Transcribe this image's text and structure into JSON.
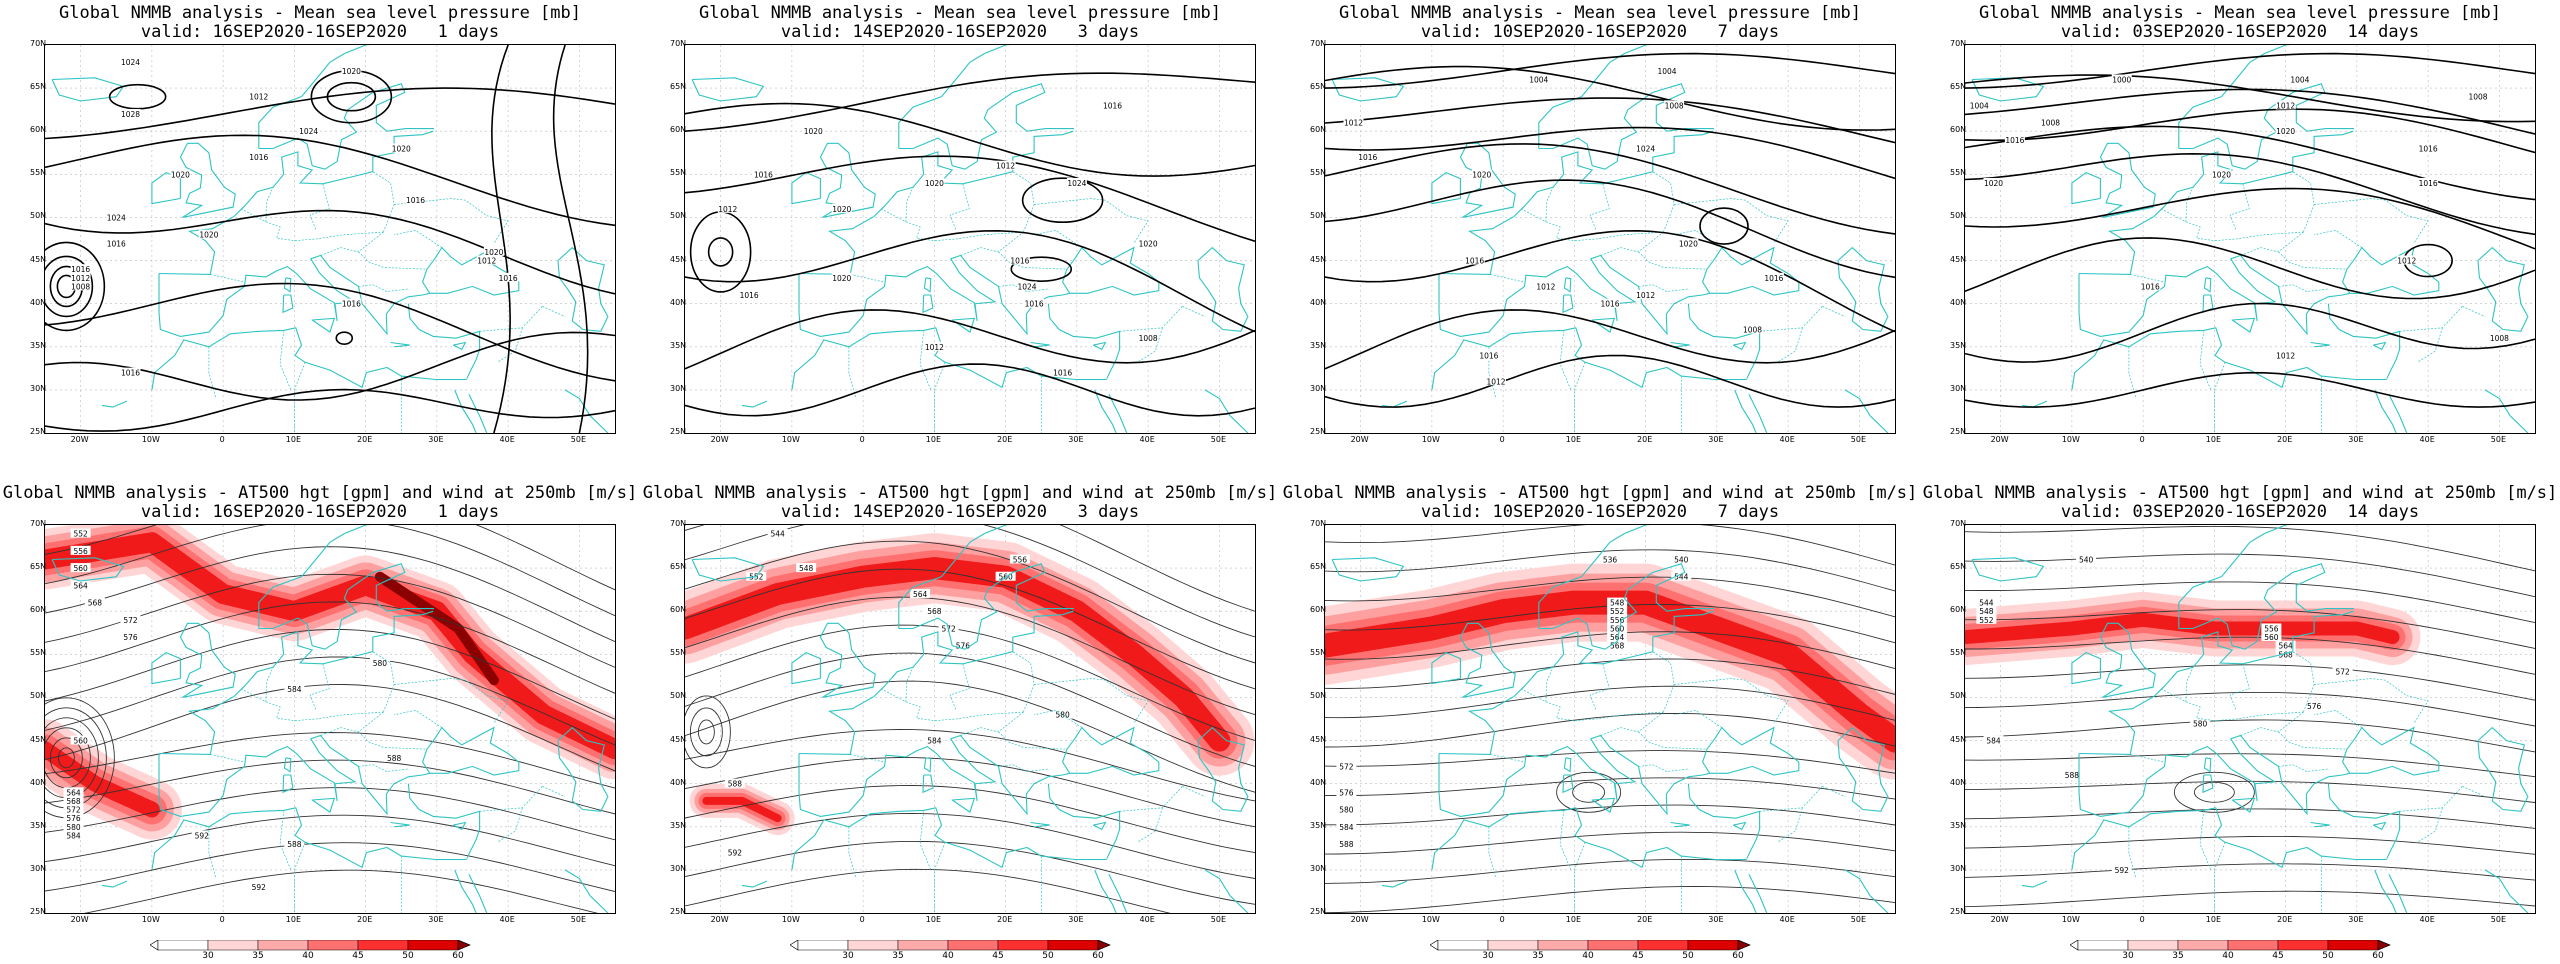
{
  "panels": [
    {
      "row": 0,
      "col": 0,
      "kind": "mslp",
      "title1": "Global NMMB analysis - Mean sea level pressure [mb]",
      "title2": "valid: 16SEP2020-16SEP2020   1 days",
      "labels": [
        "1024",
        "1028",
        "1012",
        "1020",
        "1024",
        "1016",
        "1020",
        "1016",
        "1020",
        "1024",
        "1020",
        "1016",
        "1016",
        "1012",
        "1008",
        "1016",
        "1016",
        "1012",
        "1020",
        "1016"
      ]
    },
    {
      "row": 0,
      "col": 1,
      "kind": "mslp",
      "title1": "Global NMMB analysis - Mean sea level pressure [mb]",
      "title2": "valid: 14SEP2020-16SEP2020   3 days",
      "labels": [
        "1012",
        "1020",
        "1016",
        "1016",
        "1012",
        "1020",
        "1020",
        "1024",
        "1016",
        "1024",
        "1020",
        "1020",
        "1016",
        "1016",
        "1012",
        "1016",
        "1008"
      ]
    },
    {
      "row": 0,
      "col": 2,
      "kind": "mslp",
      "title1": "Global NMMB analysis - Mean sea level pressure [mb]",
      "title2": "valid: 10SEP2020-16SEP2020   7 days",
      "labels": [
        "1004",
        "1004",
        "1008",
        "1012",
        "1016",
        "1020",
        "1024",
        "1016",
        "1012",
        "1020",
        "1016",
        "1016",
        "1012",
        "1008",
        "1016",
        "1012"
      ]
    },
    {
      "row": 0,
      "col": 3,
      "kind": "mslp",
      "title1": "Global NMMB analysis - Mean sea level pressure [mb]",
      "title2": "valid: 03SEP2020-16SEP2020  14 days",
      "labels": [
        "1000",
        "1004",
        "1008",
        "1004",
        "1008",
        "1012",
        "1016",
        "1020",
        "1016",
        "1020",
        "1020",
        "1016",
        "1012",
        "1016",
        "1012",
        "1008"
      ]
    },
    {
      "row": 1,
      "col": 0,
      "kind": "z500",
      "title1": "Global NMMB analysis - AT500 hgt [gpm] and wind at 250mb [m/s]",
      "title2": "valid: 16SEP2020-16SEP2020   1 days",
      "labels": [
        "552",
        "556",
        "560",
        "564",
        "568",
        "572",
        "576",
        "580",
        "584",
        "588",
        "592",
        "560",
        "564",
        "568",
        "572",
        "576",
        "580",
        "584",
        "588",
        "592"
      ]
    },
    {
      "row": 1,
      "col": 1,
      "kind": "z500",
      "title1": "Global NMMB analysis - AT500 hgt [gpm] and wind at 250mb [m/s]",
      "title2": "valid: 14SEP2020-16SEP2020   3 days",
      "labels": [
        "544",
        "548",
        "552",
        "556",
        "560",
        "564",
        "568",
        "572",
        "576",
        "580",
        "584",
        "588",
        "592"
      ]
    },
    {
      "row": 1,
      "col": 2,
      "kind": "z500",
      "title1": "Global NMMB analysis - AT500 hgt [gpm] and wind at 250mb [m/s]",
      "title2": "valid: 10SEP2020-16SEP2020   7 days",
      "labels": [
        "536",
        "540",
        "544",
        "548",
        "552",
        "556",
        "560",
        "564",
        "568",
        "572",
        "576",
        "580",
        "584",
        "588"
      ]
    },
    {
      "row": 1,
      "col": 3,
      "kind": "z500",
      "title1": "Global NMMB analysis - AT500 hgt [gpm] and wind at 250mb [m/s]",
      "title2": "valid: 03SEP2020-16SEP2020  14 days",
      "labels": [
        "540",
        "544",
        "548",
        "552",
        "556",
        "560",
        "564",
        "568",
        "572",
        "576",
        "580",
        "584",
        "588",
        "592"
      ]
    }
  ],
  "lat_ticks": [
    "70N",
    "65N",
    "60N",
    "55N",
    "50N",
    "45N",
    "40N",
    "35N",
    "30N",
    "25N"
  ],
  "lon_ticks": [
    "20W",
    "10W",
    "0",
    "10E",
    "20E",
    "30E",
    "40E",
    "50E"
  ],
  "colorbar": {
    "ticks": [
      "30",
      "35",
      "40",
      "45",
      "50",
      "60"
    ]
  },
  "colors": {
    "coast": "#2ec4c4",
    "contour": "#000000",
    "wind_light": "#ffd0d0",
    "wind_mid": "#ff6b6b",
    "wind_strong": "#ee1111",
    "wind_max": "#8b0000"
  }
}
